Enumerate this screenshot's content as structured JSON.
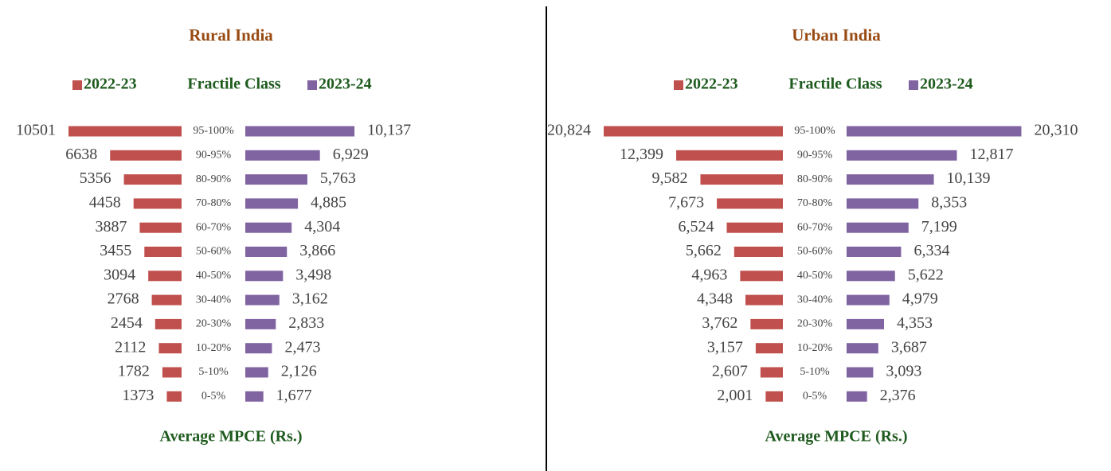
{
  "chart_data": [
    {
      "type": "butterfly",
      "title": "Rural India",
      "center_label": "Fractile Class",
      "xlabel": "Average MPCE (Rs.)",
      "categories": [
        "95-100%",
        "90-95%",
        "80-90%",
        "70-80%",
        "60-70%",
        "50-60%",
        "40-50%",
        "30-40%",
        "20-30%",
        "10-20%",
        "5-10%",
        "0-5%"
      ],
      "series": [
        {
          "name": "2022-23",
          "color": "#c0504d",
          "values": [
            10501,
            6638,
            5356,
            4458,
            3887,
            3455,
            3094,
            2768,
            2454,
            2112,
            1782,
            1373
          ]
        },
        {
          "name": "2023-24",
          "color": "#8064a2",
          "values": [
            10137,
            6929,
            5763,
            4885,
            4304,
            3866,
            3498,
            3162,
            2833,
            2473,
            2126,
            1677
          ],
          "value_labels": [
            "10,137",
            "6,929",
            "5,763",
            "4,885",
            "4,304",
            "3,866",
            "3,498",
            "3,162",
            "2,833",
            "2,473",
            "2,126",
            "1,677"
          ]
        }
      ]
    },
    {
      "type": "butterfly",
      "title": "Urban India",
      "center_label": "Fractile Class",
      "xlabel": "Average MPCE (Rs.)",
      "categories": [
        "95-100%",
        "90-95%",
        "80-90%",
        "70-80%",
        "60-70%",
        "50-60%",
        "40-50%",
        "30-40%",
        "20-30%",
        "10-20%",
        "5-10%",
        "0-5%"
      ],
      "series": [
        {
          "name": "2022-23",
          "color": "#c0504d",
          "values": [
            20824,
            12399,
            9582,
            7673,
            6524,
            5662,
            4963,
            4348,
            3762,
            3157,
            2607,
            2001
          ],
          "value_labels": [
            "20,824",
            "12,399",
            "9,582",
            "7,673",
            "6,524",
            "5,662",
            "4,963",
            "4,348",
            "3,762",
            "3,157",
            "2,607",
            "2,001"
          ]
        },
        {
          "name": "2023-24",
          "color": "#8064a2",
          "values": [
            20310,
            12817,
            10139,
            8353,
            7199,
            6334,
            5622,
            4979,
            4353,
            3687,
            3093,
            2376
          ],
          "value_labels": [
            "20,310",
            "12,817",
            "10,139",
            "8,353",
            "7,199",
            "6,334",
            "5,622",
            "4,979",
            "4,353",
            "3,687",
            "3,093",
            "2,376"
          ]
        }
      ]
    }
  ]
}
